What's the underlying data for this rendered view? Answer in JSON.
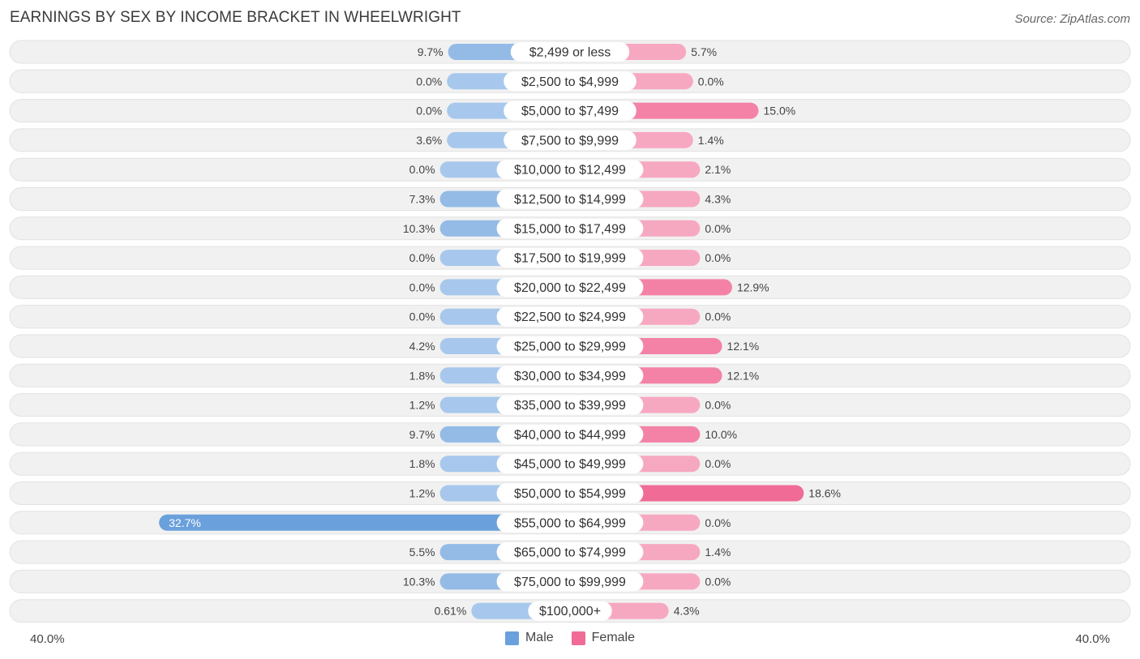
{
  "title": "EARNINGS BY SEX BY INCOME BRACKET IN WHEELWRIGHT",
  "source": "Source: ZipAtlas.com",
  "axis": {
    "left_label": "40.0%",
    "right_label": "40.0%"
  },
  "legend": {
    "male": "Male",
    "female": "Female"
  },
  "colors": {
    "male": "#6aa0dc",
    "male_light": "#a7c8ec",
    "female": "#f06b96",
    "female_light": "#f7a8c1",
    "row_bg": "#f1f1f1"
  },
  "chart_data": {
    "type": "bar",
    "orientation": "horizontal-diverging",
    "title": "EARNINGS BY SEX BY INCOME BRACKET IN WHEELWRIGHT",
    "xlim": [
      -40,
      40
    ],
    "categories": [
      "$2,499 or less",
      "$2,500 to $4,999",
      "$5,000 to $7,499",
      "$7,500 to $9,999",
      "$10,000 to $12,499",
      "$12,500 to $14,999",
      "$15,000 to $17,499",
      "$17,500 to $19,999",
      "$20,000 to $22,499",
      "$22,500 to $24,999",
      "$25,000 to $29,999",
      "$30,000 to $34,999",
      "$35,000 to $39,999",
      "$40,000 to $44,999",
      "$45,000 to $49,999",
      "$50,000 to $54,999",
      "$55,000 to $64,999",
      "$65,000 to $74,999",
      "$75,000 to $99,999",
      "$100,000+"
    ],
    "series": [
      {
        "name": "Male",
        "values": [
          9.7,
          0.0,
          0.0,
          3.6,
          0.0,
          7.3,
          10.3,
          0.0,
          0.0,
          0.0,
          4.2,
          1.8,
          1.2,
          9.7,
          1.8,
          1.2,
          32.7,
          5.5,
          10.3,
          0.61
        ],
        "labels": [
          "9.7%",
          "0.0%",
          "0.0%",
          "3.6%",
          "0.0%",
          "7.3%",
          "10.3%",
          "0.0%",
          "0.0%",
          "0.0%",
          "4.2%",
          "1.8%",
          "1.2%",
          "9.7%",
          "1.8%",
          "1.2%",
          "32.7%",
          "5.5%",
          "10.3%",
          "0.61%"
        ]
      },
      {
        "name": "Female",
        "values": [
          5.7,
          0.0,
          15.0,
          1.4,
          2.1,
          4.3,
          0.0,
          0.0,
          12.9,
          0.0,
          12.1,
          12.1,
          0.0,
          10.0,
          0.0,
          18.6,
          0.0,
          1.4,
          0.0,
          4.3
        ],
        "labels": [
          "5.7%",
          "0.0%",
          "15.0%",
          "1.4%",
          "2.1%",
          "4.3%",
          "0.0%",
          "0.0%",
          "12.9%",
          "0.0%",
          "12.1%",
          "12.1%",
          "0.0%",
          "10.0%",
          "0.0%",
          "18.6%",
          "0.0%",
          "1.4%",
          "0.0%",
          "4.3%"
        ]
      }
    ]
  }
}
